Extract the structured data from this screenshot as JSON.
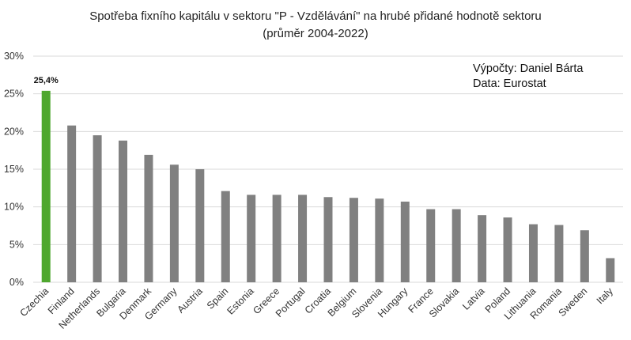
{
  "chart_data": {
    "type": "bar",
    "title": "Spotřeba fixního kapitálu v sektoru \"P - Vzdělávání\" na hrubé přidané hodnotě sektoru",
    "subtitle": "(průměr 2004-2022)",
    "annotations": [
      "Výpočty: Daniel Bárta",
      "Data: Eurostat"
    ],
    "categories": [
      "Czechia",
      "Finland",
      "Netherlands",
      "Bulgaria",
      "Denmark",
      "Germany",
      "Austria",
      "Spain",
      "Estonia",
      "Greece",
      "Portugal",
      "Croatia",
      "Belgium",
      "Slovenia",
      "Hungary",
      "France",
      "Slovakia",
      "Latvia",
      "Poland",
      "Lithuania",
      "Romania",
      "Sweden",
      "Italy"
    ],
    "values": [
      25.4,
      20.8,
      19.5,
      18.8,
      16.9,
      15.6,
      15.0,
      12.1,
      11.6,
      11.6,
      11.6,
      11.3,
      11.2,
      11.1,
      10.7,
      9.7,
      9.7,
      8.9,
      8.6,
      7.7,
      7.6,
      6.9,
      3.2
    ],
    "data_labels": [
      {
        "category": "Czechia",
        "text": "25,4%"
      }
    ],
    "ylim": [
      0,
      30
    ],
    "y_ticks": [
      0,
      5,
      10,
      15,
      20,
      25,
      30
    ],
    "y_tick_labels": [
      "0%",
      "5%",
      "10%",
      "15%",
      "20%",
      "25%",
      "30%"
    ],
    "grid": true,
    "colors": {
      "highlight": "#4ea72e",
      "default": "#808080",
      "grid": "#d9d9d9"
    },
    "highlight_category": "Czechia"
  }
}
